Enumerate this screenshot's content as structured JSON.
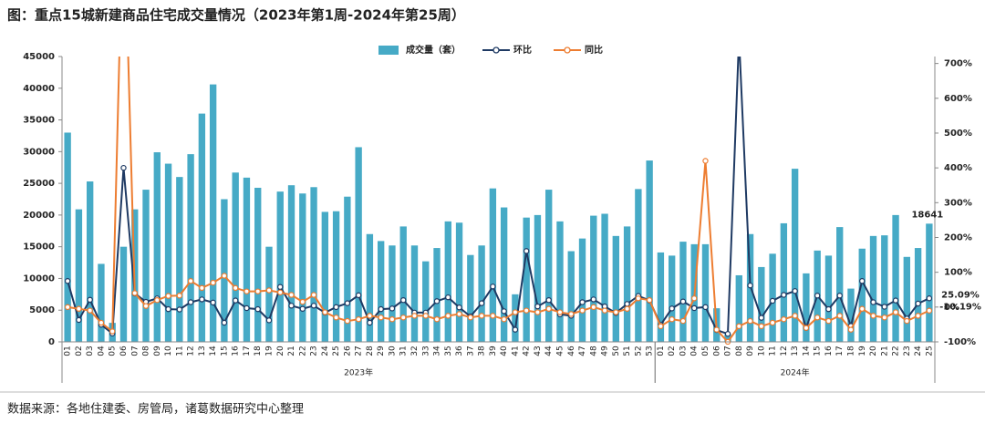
{
  "chart_data": {
    "type": "bar-line",
    "title": "图：重点15城新建商品住宅成交量情况（2023年第1周-2024年第25周）",
    "source": "数据来源：各地住建委、房管局，诸葛数据研究中心整理",
    "groups": [
      {
        "name": "2023年",
        "categories": [
          "01",
          "02",
          "03",
          "04",
          "05",
          "06",
          "07",
          "08",
          "09",
          "10",
          "11",
          "12",
          "13",
          "14",
          "15",
          "16",
          "17",
          "18",
          "19",
          "20",
          "21",
          "22",
          "23",
          "24",
          "25",
          "26",
          "27",
          "28",
          "29",
          "30",
          "31",
          "32",
          "33",
          "34",
          "35",
          "36",
          "37",
          "38",
          "39",
          "40",
          "41",
          "42",
          "43",
          "44",
          "45",
          "46",
          "47",
          "48",
          "49",
          "50",
          "51",
          "52",
          "53"
        ]
      },
      {
        "name": "2024年",
        "categories": [
          "01",
          "02",
          "03",
          "04",
          "05",
          "06",
          "07",
          "08",
          "09",
          "10",
          "11",
          "12",
          "13",
          "14",
          "15",
          "16",
          "17",
          "18",
          "19",
          "20",
          "21",
          "22",
          "23",
          "24",
          "25"
        ]
      }
    ],
    "series": [
      {
        "name": "成交量（套）",
        "kind": "bar",
        "color": "#46aac6",
        "values": [
          33000,
          20900,
          25300,
          12300,
          3000,
          15000,
          20900,
          24000,
          29900,
          28100,
          26000,
          29600,
          36000,
          40600,
          22500,
          26700,
          25900,
          24300,
          15000,
          23700,
          24700,
          23400,
          24400,
          20500,
          20600,
          22900,
          30700,
          17000,
          15900,
          15200,
          18200,
          15200,
          12700,
          14800,
          19000,
          18800,
          13700,
          15200,
          24200,
          21200,
          7500,
          19600,
          20000,
          24000,
          19000,
          14300,
          16300,
          19900,
          20200,
          16700,
          18200,
          24100,
          28600,
          14100,
          13600,
          15800,
          15400,
          15400,
          5300,
          1200,
          10500,
          17000,
          11800,
          13900,
          18700,
          27300,
          10800,
          14400,
          13600,
          18100,
          8400,
          14700,
          16700,
          16800,
          20000,
          13400,
          14800,
          18641
        ]
      },
      {
        "name": "环比",
        "kind": "line",
        "axis": "y2",
        "color": "#1f3a63",
        "values": [
          75,
          -37,
          21,
          -51,
          -76,
          400,
          39,
          15,
          25,
          -6,
          -7,
          14,
          22,
          13,
          -45,
          19,
          -3,
          -6,
          -38,
          58,
          4,
          -5,
          4,
          -16,
          0,
          11,
          34,
          -45,
          -6,
          -4,
          20,
          -16,
          -16,
          17,
          28,
          -1,
          -27,
          11,
          59,
          -12,
          -65,
          161,
          2,
          20,
          -21,
          -25,
          14,
          22,
          2,
          -17,
          9,
          32,
          19,
          -51,
          -4,
          16,
          -3,
          0,
          -66,
          -77,
          775,
          62,
          -31,
          18,
          35,
          46,
          -60,
          33,
          -6,
          33,
          -54,
          75,
          14,
          1,
          19,
          -33,
          10,
          25.09
        ],
        "value_labels": [
          null,
          null,
          null,
          null,
          null,
          null,
          null,
          null,
          null,
          null,
          null,
          null,
          null,
          null,
          null,
          null,
          null,
          null,
          null,
          null,
          null,
          null,
          null,
          null,
          null,
          null,
          null,
          null,
          null,
          null,
          null,
          null,
          null,
          null,
          null,
          null,
          null,
          null,
          null,
          null,
          null,
          null,
          null,
          null,
          null,
          null,
          null,
          null,
          null,
          null,
          null,
          null,
          null,
          null,
          null,
          null,
          null,
          null,
          null,
          null,
          null,
          null,
          null,
          null,
          null,
          null,
          null,
          null,
          null,
          null,
          null,
          null,
          null,
          null,
          null,
          null,
          null,
          "25.09%"
        ]
      },
      {
        "name": "同比",
        "kind": "line",
        "axis": "y2",
        "color": "#ed7d31",
        "values": [
          0,
          -5,
          -10,
          -45,
          -70,
          1200,
          40,
          3,
          20,
          32,
          33,
          75,
          55,
          70,
          90,
          55,
          45,
          45,
          48,
          42,
          35,
          15,
          35,
          -15,
          -30,
          -40,
          -35,
          -25,
          -30,
          -35,
          -30,
          -25,
          -25,
          -35,
          -25,
          -20,
          -30,
          -25,
          -25,
          -35,
          -15,
          -10,
          -15,
          -5,
          -15,
          -20,
          -10,
          0,
          -10,
          -15,
          -5,
          25,
          20,
          -55,
          -35,
          -40,
          25,
          420,
          -65,
          -100,
          -55,
          -40,
          -55,
          -45,
          -35,
          -25,
          -60,
          -30,
          -40,
          -25,
          -65,
          -5,
          -25,
          -30,
          -15,
          -40,
          -25,
          -10.19
        ],
        "value_labels": [
          null,
          null,
          null,
          null,
          null,
          null,
          null,
          null,
          null,
          null,
          null,
          null,
          null,
          null,
          null,
          null,
          null,
          null,
          null,
          null,
          null,
          null,
          null,
          null,
          null,
          null,
          null,
          null,
          null,
          null,
          null,
          null,
          null,
          null,
          null,
          null,
          null,
          null,
          null,
          null,
          null,
          null,
          null,
          null,
          null,
          null,
          null,
          null,
          null,
          null,
          null,
          null,
          null,
          null,
          null,
          null,
          null,
          null,
          null,
          null,
          null,
          null,
          null,
          null,
          null,
          null,
          null,
          null,
          null,
          null,
          null,
          null,
          null,
          null,
          null,
          null,
          null,
          "-10.19%"
        ]
      }
    ],
    "ylim": [
      0,
      45000
    ],
    "yticks": [
      0,
      5000,
      10000,
      15000,
      20000,
      25000,
      30000,
      35000,
      40000,
      45000
    ],
    "y2lim": [
      -100,
      720
    ],
    "y2ticks": [
      {
        "value": -100,
        "label": "-100%"
      },
      {
        "value": 0,
        "label": "0%"
      },
      {
        "value": 100,
        "label": "100%"
      },
      {
        "value": 200,
        "label": "200%"
      },
      {
        "value": 300,
        "label": "300%"
      },
      {
        "value": 400,
        "label": "400%"
      },
      {
        "value": 500,
        "label": "500%"
      },
      {
        "value": 600,
        "label": "600%"
      },
      {
        "value": 700,
        "label": "700%"
      }
    ],
    "grid": false,
    "legend": "top"
  }
}
